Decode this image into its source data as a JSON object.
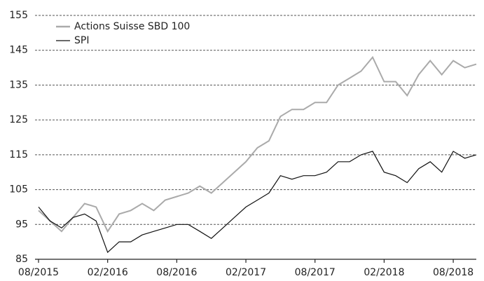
{
  "chart_data": {
    "type": "line",
    "categories": [
      "08/2015",
      null,
      null,
      null,
      null,
      null,
      "02/2016",
      null,
      null,
      null,
      null,
      null,
      "08/2016",
      null,
      null,
      null,
      null,
      null,
      "02/2017",
      null,
      null,
      null,
      null,
      null,
      "08/2017",
      null,
      null,
      null,
      null,
      null,
      "02/2018",
      null,
      null,
      null,
      null,
      null,
      "08/2018",
      null,
      null
    ],
    "series": [
      {
        "name": "Actions Suisse SBD 100",
        "color": "#aaaaaa",
        "values": [
          99,
          96,
          93,
          97,
          101,
          100,
          93,
          98,
          99,
          101,
          99,
          102,
          103,
          104,
          106,
          104,
          107,
          110,
          113,
          117,
          119,
          126,
          128,
          128,
          130,
          130,
          135,
          137,
          139,
          143,
          136,
          136,
          132,
          138,
          142,
          138,
          142,
          140,
          141
        ]
      },
      {
        "name": "SPI",
        "color": "#111111",
        "values": [
          100,
          96,
          94,
          97,
          98,
          96,
          87,
          90,
          90,
          92,
          93,
          94,
          95,
          95,
          93,
          91,
          94,
          97,
          100,
          102,
          104,
          109,
          108,
          109,
          109,
          110,
          113,
          113,
          115,
          116,
          110,
          109,
          107,
          111,
          113,
          110,
          116,
          114,
          115
        ]
      }
    ],
    "ylim": [
      85,
      155
    ],
    "yticks": [
      85,
      95,
      105,
      115,
      125,
      135,
      145,
      155
    ],
    "grid": true
  }
}
